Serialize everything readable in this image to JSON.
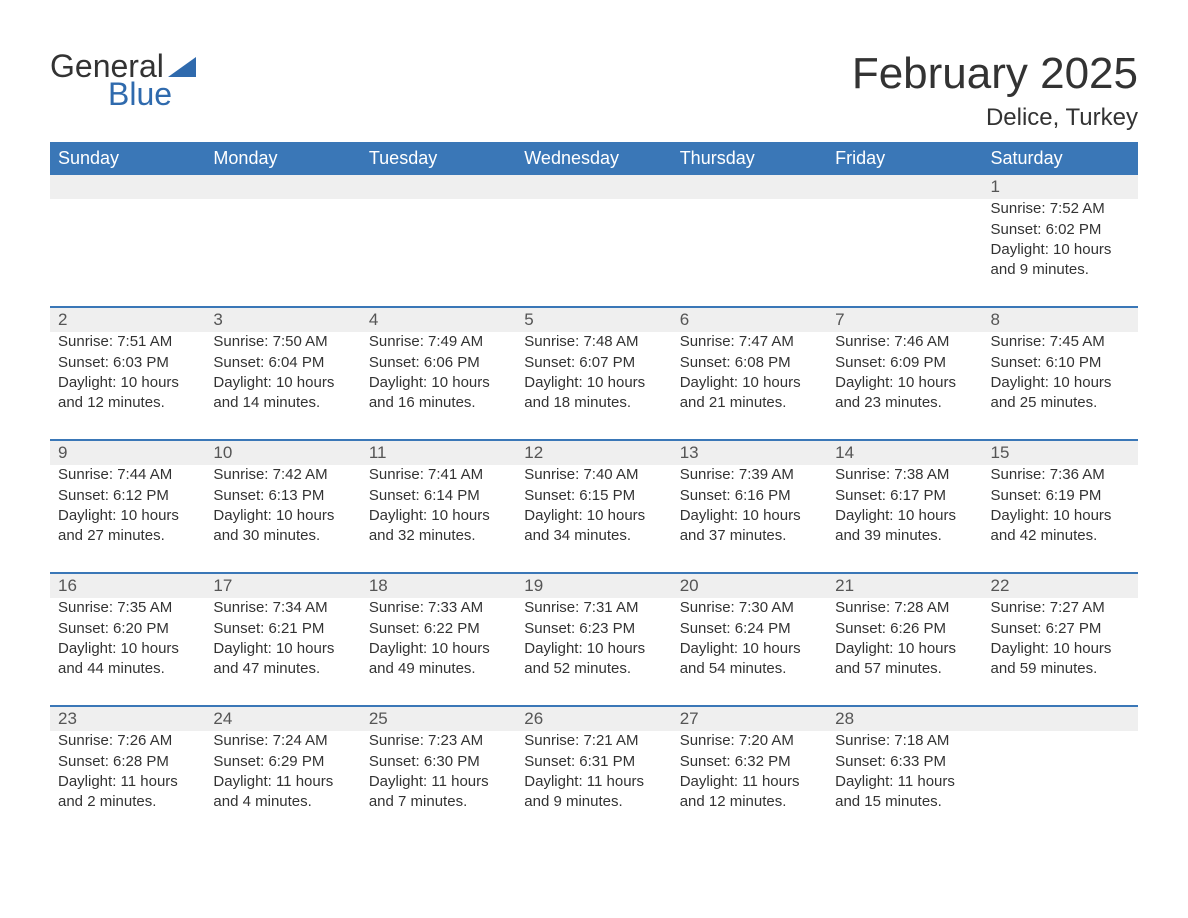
{
  "brand": {
    "general": "General",
    "blue": "Blue",
    "brand_color": "#2f6aad"
  },
  "title": "February 2025",
  "location": "Delice, Turkey",
  "colors": {
    "header_bg": "#3a77b7",
    "header_text": "#ffffff",
    "row_border": "#3a77b7",
    "daynum_bg": "#efefef",
    "page_bg": "#ffffff",
    "body_text": "#333333"
  },
  "weekday_labels": [
    "Sunday",
    "Monday",
    "Tuesday",
    "Wednesday",
    "Thursday",
    "Friday",
    "Saturday"
  ],
  "labels": {
    "sunrise": "Sunrise",
    "sunset": "Sunset",
    "daylight": "Daylight"
  },
  "weeks": [
    [
      null,
      null,
      null,
      null,
      null,
      null,
      {
        "day": "1",
        "sunrise": "7:52 AM",
        "sunset": "6:02 PM",
        "daylight": "10 hours and 9 minutes."
      }
    ],
    [
      {
        "day": "2",
        "sunrise": "7:51 AM",
        "sunset": "6:03 PM",
        "daylight": "10 hours and 12 minutes."
      },
      {
        "day": "3",
        "sunrise": "7:50 AM",
        "sunset": "6:04 PM",
        "daylight": "10 hours and 14 minutes."
      },
      {
        "day": "4",
        "sunrise": "7:49 AM",
        "sunset": "6:06 PM",
        "daylight": "10 hours and 16 minutes."
      },
      {
        "day": "5",
        "sunrise": "7:48 AM",
        "sunset": "6:07 PM",
        "daylight": "10 hours and 18 minutes."
      },
      {
        "day": "6",
        "sunrise": "7:47 AM",
        "sunset": "6:08 PM",
        "daylight": "10 hours and 21 minutes."
      },
      {
        "day": "7",
        "sunrise": "7:46 AM",
        "sunset": "6:09 PM",
        "daylight": "10 hours and 23 minutes."
      },
      {
        "day": "8",
        "sunrise": "7:45 AM",
        "sunset": "6:10 PM",
        "daylight": "10 hours and 25 minutes."
      }
    ],
    [
      {
        "day": "9",
        "sunrise": "7:44 AM",
        "sunset": "6:12 PM",
        "daylight": "10 hours and 27 minutes."
      },
      {
        "day": "10",
        "sunrise": "7:42 AM",
        "sunset": "6:13 PM",
        "daylight": "10 hours and 30 minutes."
      },
      {
        "day": "11",
        "sunrise": "7:41 AM",
        "sunset": "6:14 PM",
        "daylight": "10 hours and 32 minutes."
      },
      {
        "day": "12",
        "sunrise": "7:40 AM",
        "sunset": "6:15 PM",
        "daylight": "10 hours and 34 minutes."
      },
      {
        "day": "13",
        "sunrise": "7:39 AM",
        "sunset": "6:16 PM",
        "daylight": "10 hours and 37 minutes."
      },
      {
        "day": "14",
        "sunrise": "7:38 AM",
        "sunset": "6:17 PM",
        "daylight": "10 hours and 39 minutes."
      },
      {
        "day": "15",
        "sunrise": "7:36 AM",
        "sunset": "6:19 PM",
        "daylight": "10 hours and 42 minutes."
      }
    ],
    [
      {
        "day": "16",
        "sunrise": "7:35 AM",
        "sunset": "6:20 PM",
        "daylight": "10 hours and 44 minutes."
      },
      {
        "day": "17",
        "sunrise": "7:34 AM",
        "sunset": "6:21 PM",
        "daylight": "10 hours and 47 minutes."
      },
      {
        "day": "18",
        "sunrise": "7:33 AM",
        "sunset": "6:22 PM",
        "daylight": "10 hours and 49 minutes."
      },
      {
        "day": "19",
        "sunrise": "7:31 AM",
        "sunset": "6:23 PM",
        "daylight": "10 hours and 52 minutes."
      },
      {
        "day": "20",
        "sunrise": "7:30 AM",
        "sunset": "6:24 PM",
        "daylight": "10 hours and 54 minutes."
      },
      {
        "day": "21",
        "sunrise": "7:28 AM",
        "sunset": "6:26 PM",
        "daylight": "10 hours and 57 minutes."
      },
      {
        "day": "22",
        "sunrise": "7:27 AM",
        "sunset": "6:27 PM",
        "daylight": "10 hours and 59 minutes."
      }
    ],
    [
      {
        "day": "23",
        "sunrise": "7:26 AM",
        "sunset": "6:28 PM",
        "daylight": "11 hours and 2 minutes."
      },
      {
        "day": "24",
        "sunrise": "7:24 AM",
        "sunset": "6:29 PM",
        "daylight": "11 hours and 4 minutes."
      },
      {
        "day": "25",
        "sunrise": "7:23 AM",
        "sunset": "6:30 PM",
        "daylight": "11 hours and 7 minutes."
      },
      {
        "day": "26",
        "sunrise": "7:21 AM",
        "sunset": "6:31 PM",
        "daylight": "11 hours and 9 minutes."
      },
      {
        "day": "27",
        "sunrise": "7:20 AM",
        "sunset": "6:32 PM",
        "daylight": "11 hours and 12 minutes."
      },
      {
        "day": "28",
        "sunrise": "7:18 AM",
        "sunset": "6:33 PM",
        "daylight": "11 hours and 15 minutes."
      },
      null
    ]
  ]
}
